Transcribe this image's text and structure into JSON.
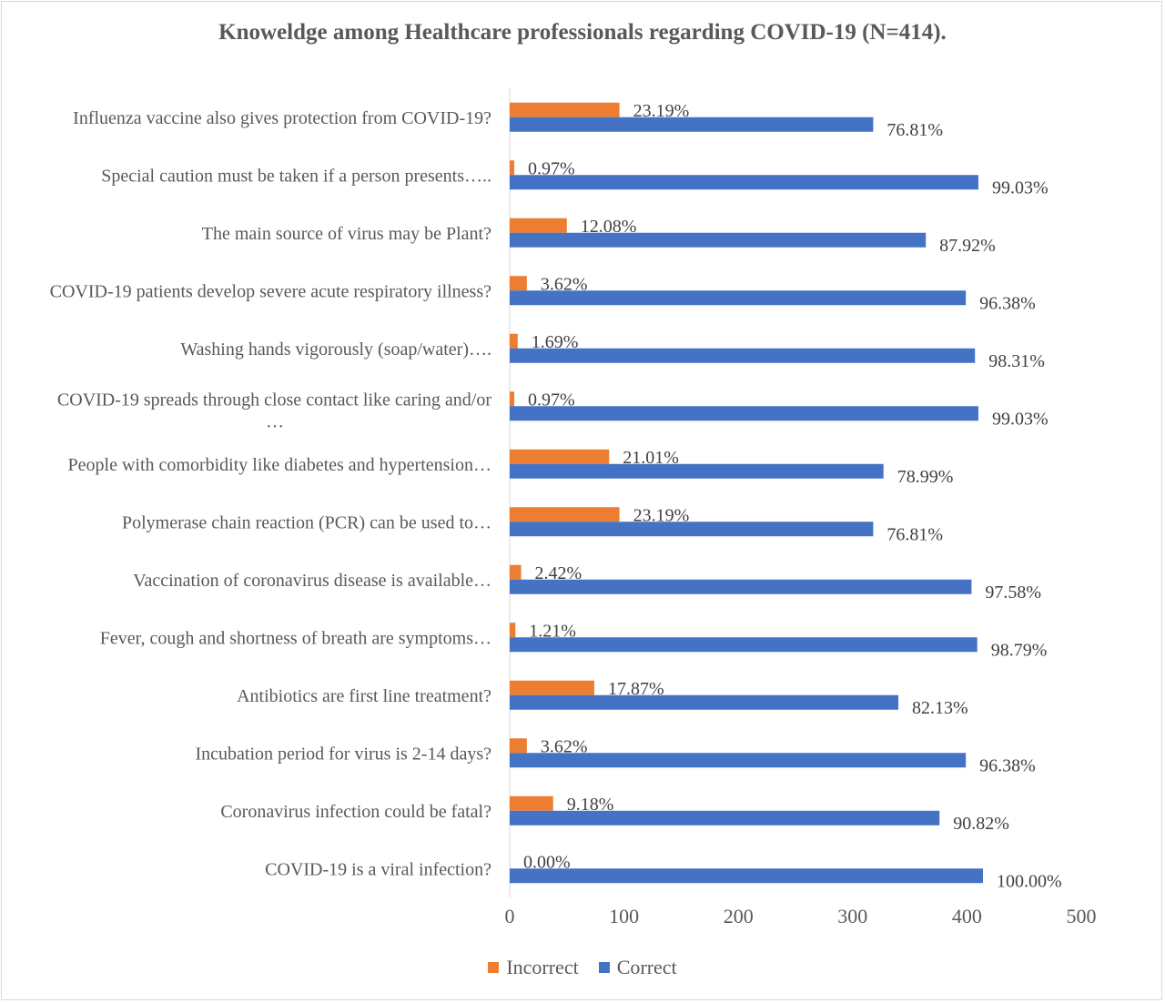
{
  "chart_data": {
    "type": "bar",
    "orientation": "horizontal",
    "title": "Knoweldge among Healthcare professionals regarding COVID-19 (N=414).",
    "categories": [
      "Influenza vaccine also gives protection from COVID-19?",
      "Special caution must be taken if a person presents…..",
      "The main source of virus may be Plant?",
      "COVID-19 patients develop severe acute respiratory illness?",
      "Washing hands vigorously (soap/water)….",
      "COVID-19 spreads through close contact like caring and/or …",
      "People with comorbidity like diabetes and hypertension…",
      "Polymerase chain reaction (PCR) can be used to…",
      "Vaccination of coronavirus disease is available…",
      "Fever, cough and shortness of breath are symptoms…",
      "Antibiotics are first line treatment?",
      "Incubation period for virus is 2-14 days?",
      "Coronavirus infection could be fatal?",
      "COVID-19 is a viral infection?"
    ],
    "series": [
      {
        "name": "Incorrect",
        "color": "#ed7d31",
        "values": [
          96,
          4,
          50,
          15,
          7,
          4,
          87,
          96,
          10,
          5,
          74,
          15,
          38,
          0
        ],
        "labels": [
          "23.19%",
          "0.97%",
          "12.08%",
          "3.62%",
          "1.69%",
          "0.97%",
          "21.01%",
          "23.19%",
          "2.42%",
          "1.21%",
          "17.87%",
          "3.62%",
          "9.18%",
          "0.00%"
        ]
      },
      {
        "name": "Correct",
        "color": "#4472c4",
        "values": [
          318,
          410,
          364,
          399,
          407,
          410,
          327,
          318,
          404,
          409,
          340,
          399,
          376,
          414
        ],
        "labels": [
          "76.81%",
          "99.03%",
          "87.92%",
          "96.38%",
          "98.31%",
          "99.03%",
          "78.99%",
          "76.81%",
          "97.58%",
          "98.79%",
          "82.13%",
          "96.38%",
          "90.82%",
          "100.00%"
        ]
      }
    ],
    "xlim": [
      0,
      500
    ],
    "xticks": [
      "0",
      "100",
      "200",
      "300",
      "400",
      "500"
    ],
    "grid": false,
    "legend": "bottom"
  }
}
